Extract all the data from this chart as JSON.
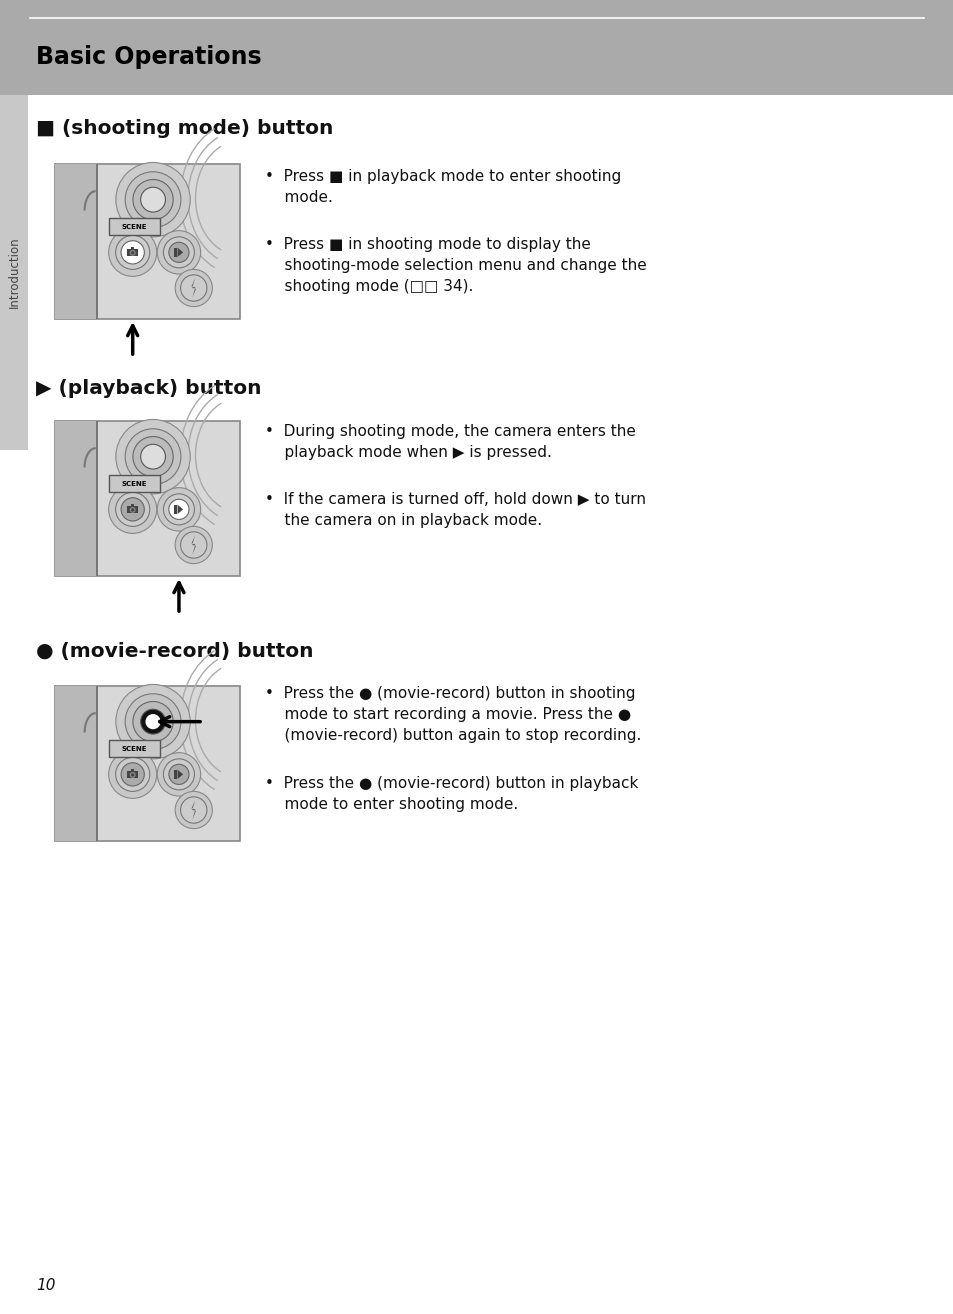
{
  "page_bg": "#ffffff",
  "header_bg": "#aaaaaa",
  "header_text": "Basic Operations",
  "header_line_color": "#ffffff",
  "sidebar_bg": "#c8c8c8",
  "sidebar_text": "Introduction",
  "page_number": "10",
  "sec1_head_icon": "■",
  "sec1_head": " (shooting mode) button",
  "sec1_b1": "Press  in playback mode to enter shooting\nmode.",
  "sec1_b2": "Press  in shooting mode to display the\nshooting-mode selection menu and change the\nshooting mode (□□ 34).",
  "sec2_head_icon": "▶",
  "sec2_head": " (playback) button",
  "sec2_b1": "During shooting mode, the camera enters the\nplayback mode when ▶ is pressed.",
  "sec2_b2": "If the camera is turned off, hold down ▶ to turn\nthe camera on in playback mode.",
  "sec3_head_icon": "●",
  "sec3_head": " (movie-record) button",
  "sec3_b1": "Press the ● (movie-record) button in shooting\nmode to start recording a movie. Press the ●\n(movie-record) button again to stop recording.",
  "sec3_b2": "Press the ● (movie-record) button in playback\nmode to enter shooting mode.",
  "cam_bg": "#d8d8d8",
  "cam_left_bg": "#b8b8b8",
  "cam_border": "#888888"
}
